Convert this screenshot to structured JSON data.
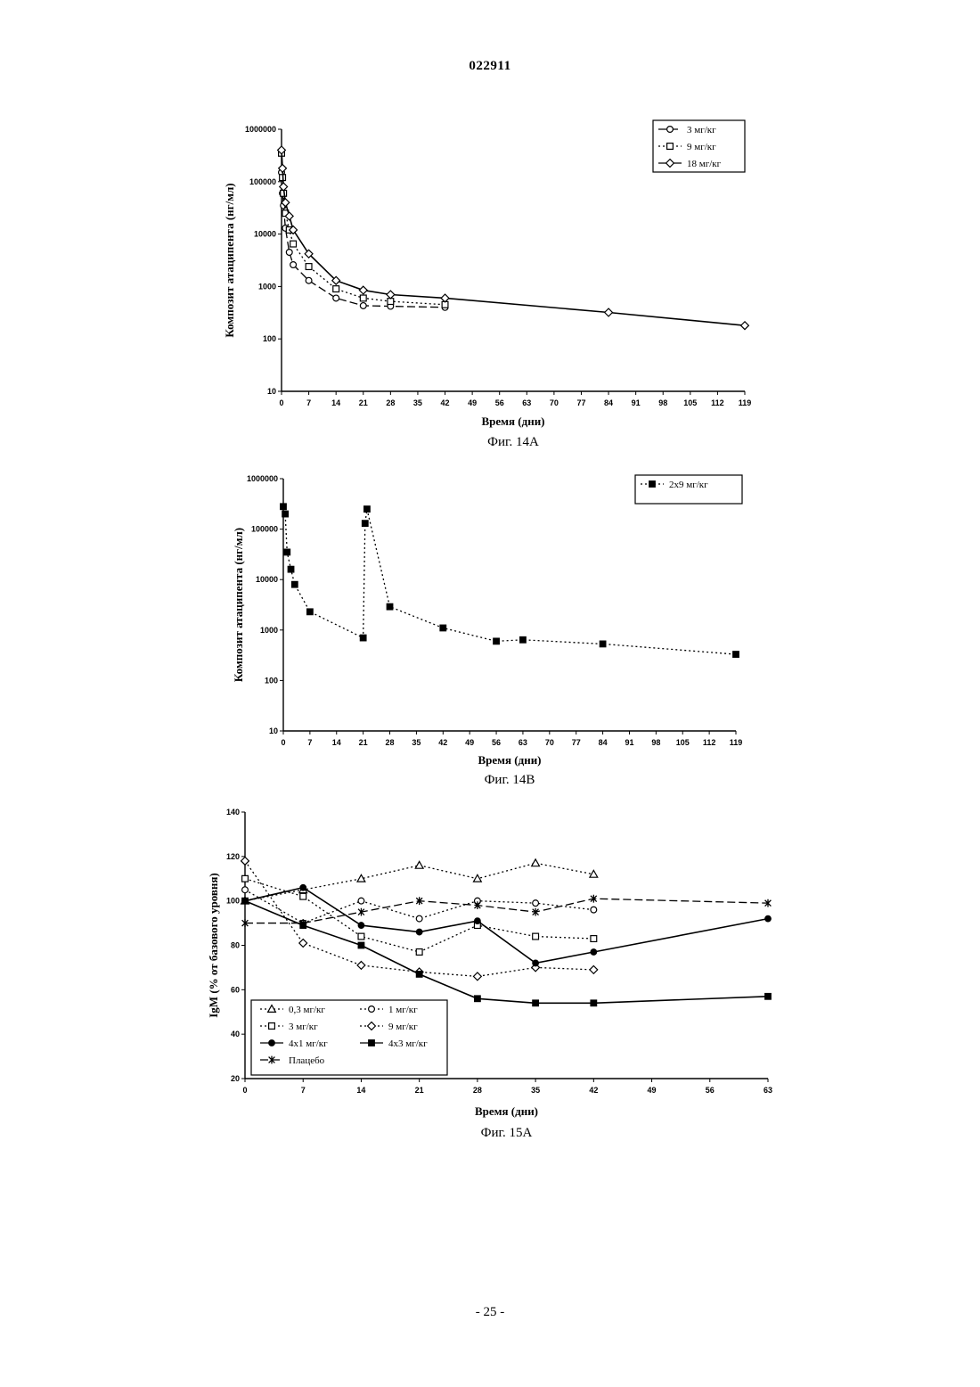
{
  "header": {
    "doc_number": "022911"
  },
  "footer": {
    "page_number": "- 25 -"
  },
  "colors": {
    "ink": "#000000",
    "background": "#ffffff"
  },
  "chart_data": [
    {
      "id": "fig14a",
      "type": "line",
      "caption": "Фиг. 14A",
      "xlabel": "Время (дни)",
      "ylabel": "Композит атаципента (нг/мл)",
      "yscale": "log",
      "ylim": [
        10,
        1000000
      ],
      "yticks": [
        "10",
        "100",
        "1000",
        "10000",
        "100000",
        "1000000"
      ],
      "xlim": [
        0,
        119
      ],
      "xticks": [
        "0",
        "7",
        "14",
        "21",
        "28",
        "35",
        "42",
        "49",
        "56",
        "63",
        "70",
        "77",
        "84",
        "91",
        "98",
        "105",
        "112",
        "119"
      ],
      "legend_position": "top-right",
      "series": [
        {
          "name": "3 мг/кг",
          "legend_label": "3  мг/кг",
          "marker": "circle",
          "line": "dashed",
          "x": [
            0,
            0.25,
            0.5,
            1,
            2,
            3,
            7,
            14,
            21,
            28,
            42
          ],
          "y": [
            150000,
            60000,
            35000,
            13000,
            4500,
            2600,
            1300,
            600,
            430,
            420,
            400
          ]
        },
        {
          "name": "9 мг/кг",
          "legend_label": "9 мг/кг",
          "marker": "square",
          "line": "dotted",
          "x": [
            0,
            0.25,
            0.5,
            1,
            2,
            3,
            7,
            14,
            21,
            28,
            42
          ],
          "y": [
            350000,
            120000,
            60000,
            25000,
            12000,
            6500,
            2400,
            900,
            600,
            520,
            450
          ]
        },
        {
          "name": "18 мг/кг",
          "legend_label": "18 мг/кг",
          "marker": "diamond",
          "line": "solid",
          "x": [
            0,
            0.25,
            0.5,
            1,
            2,
            3,
            7,
            14,
            21,
            28,
            42,
            84,
            119
          ],
          "y": [
            400000,
            180000,
            80000,
            40000,
            22000,
            12000,
            4200,
            1300,
            850,
            700,
            600,
            320,
            180
          ]
        }
      ]
    },
    {
      "id": "fig14b",
      "type": "line",
      "caption": "Фиг. 14B",
      "xlabel": "Время (дни)",
      "ylabel": "Композит атаципента (нг/мл)",
      "yscale": "log",
      "ylim": [
        10,
        1000000
      ],
      "yticks": [
        "10",
        "100",
        "1000",
        "10000",
        "100000",
        "1000000"
      ],
      "xlim": [
        0,
        119
      ],
      "xticks": [
        "0",
        "7",
        "14",
        "21",
        "28",
        "35",
        "42",
        "49",
        "56",
        "63",
        "70",
        "77",
        "84",
        "91",
        "98",
        "105",
        "112",
        "119"
      ],
      "legend_position": "top-right",
      "series": [
        {
          "name": "2x9 мг/кг",
          "legend_label": "2x9  мг/кг",
          "marker": "filled-square",
          "line": "dotted",
          "x": [
            0,
            0.5,
            1,
            2,
            3,
            7,
            21,
            21.5,
            22,
            28,
            42,
            56,
            63,
            84,
            119
          ],
          "y": [
            280000,
            200000,
            35000,
            16000,
            8000,
            2300,
            700,
            130000,
            250000,
            2900,
            1100,
            600,
            640,
            530,
            330
          ]
        }
      ]
    },
    {
      "id": "fig15a",
      "type": "line",
      "caption": "Фиг. 15A",
      "xlabel": "Время (дни)",
      "ylabel": "IgM (% от базового уровня)",
      "yscale": "linear",
      "ylim": [
        20,
        140
      ],
      "yticks": [
        "20",
        "40",
        "60",
        "80",
        "100",
        "120",
        "140"
      ],
      "xlim": [
        0,
        63
      ],
      "xticks": [
        "0",
        "7",
        "14",
        "21",
        "28",
        "35",
        "42",
        "49",
        "56",
        "63"
      ],
      "legend_position": "bottom-left",
      "series": [
        {
          "name": "0,3 мг/кг",
          "legend_label": "0,3  мг/кг",
          "marker": "triangle",
          "line": "dotted",
          "x": [
            0,
            7,
            14,
            21,
            28,
            35,
            42
          ],
          "y": [
            100,
            105,
            110,
            116,
            110,
            117,
            112
          ]
        },
        {
          "name": "1 мг/кг",
          "legend_label": "1  мг/кг",
          "marker": "circle",
          "line": "dotted",
          "x": [
            0,
            7,
            14,
            21,
            28,
            35,
            42
          ],
          "y": [
            105,
            90,
            100,
            92,
            100,
            99,
            96
          ]
        },
        {
          "name": "3 мг/кг",
          "legend_label": "3    мг/кг",
          "marker": "square",
          "line": "dotted",
          "x": [
            0,
            7,
            14,
            21,
            28,
            35,
            42
          ],
          "y": [
            110,
            102,
            84,
            77,
            89,
            84,
            83
          ]
        },
        {
          "name": "9 мг/кг",
          "legend_label": "9  мг/кг",
          "marker": "diamond",
          "line": "dotted",
          "x": [
            0,
            7,
            14,
            21,
            28,
            35,
            42
          ],
          "y": [
            118,
            81,
            71,
            68,
            66,
            70,
            69
          ]
        },
        {
          "name": "4x1 мг/кг",
          "legend_label": "4x1 мг/кг",
          "marker": "filled-circle",
          "line": "solid",
          "x": [
            0,
            7,
            14,
            21,
            28,
            35,
            42,
            63
          ],
          "y": [
            100,
            106,
            89,
            86,
            91,
            72,
            77,
            92
          ]
        },
        {
          "name": "4x3 мг/кг",
          "legend_label": "4x3  мг/кг",
          "marker": "filled-square",
          "line": "solid",
          "x": [
            0,
            7,
            14,
            21,
            28,
            35,
            42,
            63
          ],
          "y": [
            100,
            89,
            80,
            67,
            56,
            54,
            54,
            57
          ]
        },
        {
          "name": "Плацебо",
          "legend_label": "Плацебо",
          "marker": "asterisk",
          "line": "dashed",
          "x": [
            0,
            7,
            14,
            21,
            28,
            35,
            42,
            63
          ],
          "y": [
            90,
            90,
            95,
            100,
            98,
            95,
            101,
            99
          ]
        }
      ]
    }
  ]
}
